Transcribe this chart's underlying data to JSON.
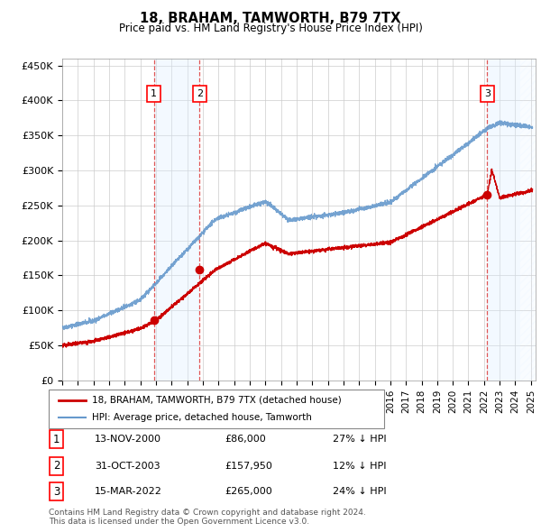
{
  "title": "18, BRAHAM, TAMWORTH, B79 7TX",
  "subtitle": "Price paid vs. HM Land Registry's House Price Index (HPI)",
  "legend_line1": "18, BRAHAM, TAMWORTH, B79 7TX (detached house)",
  "legend_line2": "HPI: Average price, detached house, Tamworth",
  "transactions": [
    {
      "num": 1,
      "date": "13-NOV-2000",
      "price": 86000,
      "hpi_note": "27% ↓ HPI"
    },
    {
      "num": 2,
      "date": "31-OCT-2003",
      "price": 157950,
      "hpi_note": "12% ↓ HPI"
    },
    {
      "num": 3,
      "date": "15-MAR-2022",
      "price": 265000,
      "hpi_note": "24% ↓ HPI"
    }
  ],
  "footer": "Contains HM Land Registry data © Crown copyright and database right 2024.\nThis data is licensed under the Open Government Licence v3.0.",
  "red_color": "#cc0000",
  "blue_color": "#6699cc",
  "shade_color": "#ddeeff",
  "ylim": [
    0,
    460000
  ],
  "yticks": [
    0,
    50000,
    100000,
    150000,
    200000,
    250000,
    300000,
    350000,
    400000,
    450000
  ],
  "ytick_labels": [
    "£0",
    "£50K",
    "£100K",
    "£150K",
    "£200K",
    "£250K",
    "£300K",
    "£350K",
    "£400K",
    "£450K"
  ],
  "xlim_start": 1995.0,
  "xlim_end": 2025.3
}
